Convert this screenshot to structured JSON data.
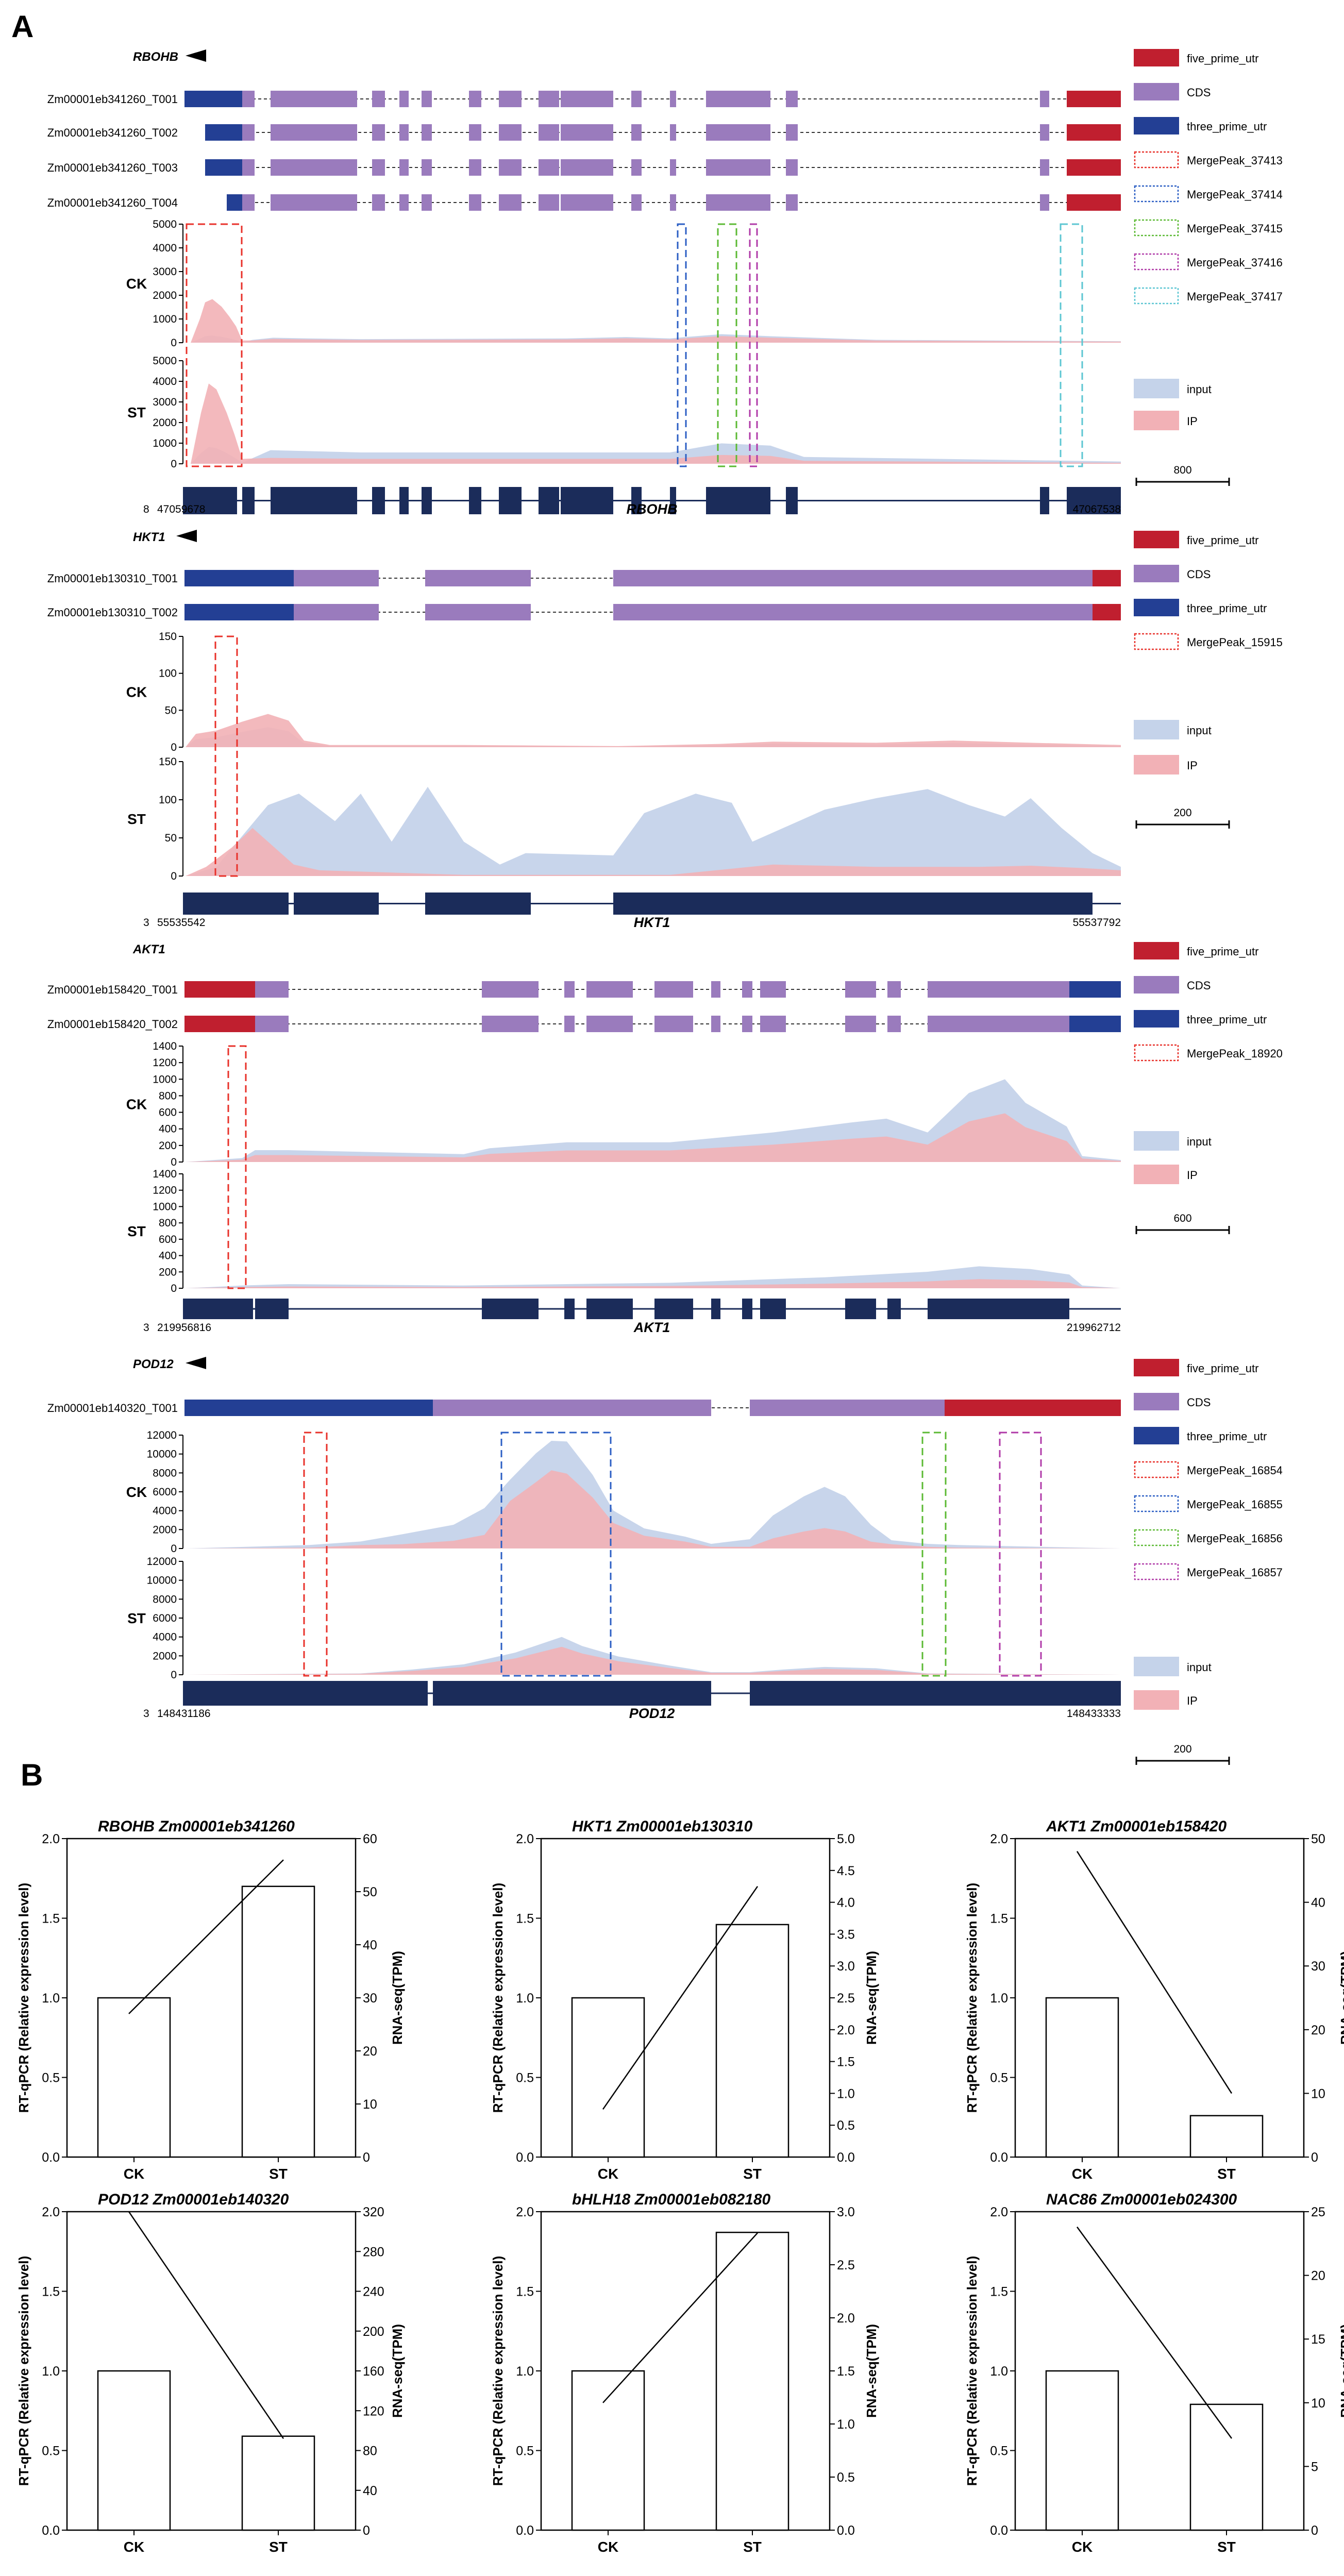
{
  "figure": {
    "panel_a_label": "A",
    "panel_b_label": "B"
  },
  "colors": {
    "five_prime_utr": "#c01f2f",
    "cds": "#9a7bbd",
    "three_prime_utr": "#233f94",
    "input": "#c5d3ea",
    "ip": "#f2b1b6",
    "gene_block": "#1b2c5a"
  },
  "legend_common": {
    "five_prime_utr": "five_prime_utr",
    "cds": "CDS",
    "three_prime_utr": "three_prime_utr",
    "input": "input",
    "ip": "IP"
  },
  "tracks": [
    {
      "id": "rbohb",
      "gene": "RBOHB",
      "strand": "minus",
      "chrom": "8",
      "start": "47059678",
      "end": "47067538",
      "scale_bar": "800",
      "transcripts": [
        "Zm00001eb341260_T001",
        "Zm00001eb341260_T002",
        "Zm00001eb341260_T003",
        "Zm00001eb341260_T004"
      ],
      "peaks": [
        {
          "name": "MergePeak_37413",
          "color": "#e8312a"
        },
        {
          "name": "MergePeak_37414",
          "color": "#2c5fc4"
        },
        {
          "name": "MergePeak_37415",
          "color": "#5cba34"
        },
        {
          "name": "MergePeak_37416",
          "color": "#b03aa8"
        },
        {
          "name": "MergePeak_37417",
          "color": "#5cc6d2"
        }
      ],
      "coverage": {
        "ck": {
          "label": "CK",
          "yticks": [
            "5000",
            "4000",
            "3000",
            "2000",
            "1000",
            "0"
          ],
          "ymax": 5000
        },
        "st": {
          "label": "ST",
          "yticks": [
            "5000",
            "4000",
            "3000",
            "2000",
            "1000",
            "0"
          ],
          "ymax": 5000
        }
      }
    },
    {
      "id": "hkt1",
      "gene": "HKT1",
      "strand": "minus",
      "chrom": "3",
      "start": "55535542",
      "end": "55537792",
      "scale_bar": "200",
      "transcripts": [
        "Zm00001eb130310_T001",
        "Zm00001eb130310_T002"
      ],
      "peaks": [
        {
          "name": "MergePeak_15915",
          "color": "#e8312a"
        }
      ],
      "coverage": {
        "ck": {
          "label": "CK",
          "yticks": [
            "150",
            "100",
            "50",
            "0"
          ],
          "ymax": 150
        },
        "st": {
          "label": "ST",
          "yticks": [
            "150",
            "100",
            "50",
            "0"
          ],
          "ymax": 150
        }
      }
    },
    {
      "id": "akt1",
      "gene": "AKT1",
      "strand": "plus",
      "chrom": "3",
      "start": "219956816",
      "end": "219962712",
      "scale_bar": "600",
      "transcripts": [
        "Zm00001eb158420_T001",
        "Zm00001eb158420_T002"
      ],
      "peaks": [
        {
          "name": "MergePeak_18920",
          "color": "#e8312a"
        }
      ],
      "coverage": {
        "ck": {
          "label": "CK",
          "yticks": [
            "1400",
            "1200",
            "1000",
            "800",
            "600",
            "400",
            "200",
            "0"
          ],
          "ymax": 1400
        },
        "st": {
          "label": "ST",
          "yticks": [
            "1400",
            "1200",
            "1000",
            "800",
            "600",
            "400",
            "200",
            "0"
          ],
          "ymax": 1400
        }
      }
    },
    {
      "id": "pod12",
      "gene": "POD12",
      "strand": "minus",
      "chrom": "3",
      "start": "148431186",
      "end": "148433333",
      "scale_bar": "200",
      "transcripts": [
        "Zm00001eb140320_T001"
      ],
      "peaks": [
        {
          "name": "MergePeak_16854",
          "color": "#e8312a"
        },
        {
          "name": "MergePeak_16855",
          "color": "#2c5fc4"
        },
        {
          "name": "MergePeak_16856",
          "color": "#5cba34"
        },
        {
          "name": "MergePeak_16857",
          "color": "#b03aa8"
        }
      ],
      "coverage": {
        "ck": {
          "label": "CK",
          "yticks": [
            "12000",
            "10000",
            "8000",
            "6000",
            "4000",
            "2000",
            "0"
          ],
          "ymax": 12000
        },
        "st": {
          "label": "ST",
          "yticks": [
            "12000",
            "10000",
            "8000",
            "6000",
            "4000",
            "2000",
            "0"
          ],
          "ymax": 12000
        }
      }
    }
  ],
  "chart_data": [
    {
      "type": "bar",
      "title": "RBOHB  Zm00001eb341260",
      "categories": [
        "CK",
        "ST"
      ],
      "values": [
        1.0,
        1.7
      ],
      "ylabel": "RT-qPCR (Relative expression level)",
      "ylim": [
        0,
        2.0
      ],
      "yticks": [
        "0.0",
        "0.5",
        "1.0",
        "1.5",
        "2.0"
      ],
      "y2label": "RNA-seq(TPM)",
      "y2lim": [
        0,
        60
      ],
      "y2ticks": [
        "0",
        "10",
        "20",
        "30",
        "40",
        "50",
        "60"
      ],
      "line_values": [
        27,
        56
      ]
    },
    {
      "type": "bar",
      "title": "HKT1  Zm00001eb130310",
      "categories": [
        "CK",
        "ST"
      ],
      "values": [
        1.0,
        1.46
      ],
      "ylabel": "RT-qPCR (Relative expression level)",
      "ylim": [
        0,
        2.0
      ],
      "yticks": [
        "0.0",
        "0.5",
        "1.0",
        "1.5",
        "2.0"
      ],
      "y2label": "RNA-seq(TPM)",
      "y2lim": [
        0,
        5.0
      ],
      "y2ticks": [
        "0.0",
        "0.5",
        "1.0",
        "1.5",
        "2.0",
        "2.5",
        "3.0",
        "3.5",
        "4.0",
        "4.5",
        "5.0"
      ],
      "line_values": [
        0.75,
        4.25
      ]
    },
    {
      "type": "bar",
      "title": "AKT1  Zm00001eb158420",
      "categories": [
        "CK",
        "ST"
      ],
      "values": [
        1.0,
        0.26
      ],
      "ylabel": "RT-qPCR (Relative expression level)",
      "ylim": [
        0,
        2.0
      ],
      "yticks": [
        "0.0",
        "0.5",
        "1.0",
        "1.5",
        "2.0"
      ],
      "y2label": "RNA-seq(TPM)",
      "y2lim": [
        0,
        50
      ],
      "y2ticks": [
        "0",
        "10",
        "20",
        "30",
        "40",
        "50"
      ],
      "line_values": [
        48,
        10
      ]
    },
    {
      "type": "bar",
      "title": "POD12  Zm00001eb140320",
      "categories": [
        "CK",
        "ST"
      ],
      "values": [
        1.0,
        0.59
      ],
      "ylabel": "RT-qPCR (Relative expression level)",
      "ylim": [
        0,
        2.0
      ],
      "yticks": [
        "0.0",
        "0.5",
        "1.0",
        "1.5",
        "2.0"
      ],
      "y2label": "RNA-seq(TPM)",
      "y2lim": [
        0,
        320
      ],
      "y2ticks": [
        "0",
        "40",
        "80",
        "120",
        "160",
        "200",
        "240",
        "280",
        "320"
      ],
      "line_values": [
        320,
        92
      ]
    },
    {
      "type": "bar",
      "title": "bHLH18  Zm00001eb082180",
      "categories": [
        "CK",
        "ST"
      ],
      "values": [
        1.0,
        1.87
      ],
      "ylabel": "RT-qPCR (Relative expression level)",
      "ylim": [
        0,
        2.0
      ],
      "yticks": [
        "0.0",
        "0.5",
        "1.0",
        "1.5",
        "2.0"
      ],
      "y2label": "RNA-seq(TPM)",
      "y2lim": [
        0,
        3.0
      ],
      "y2ticks": [
        "0.0",
        "0.5",
        "1.0",
        "1.5",
        "2.0",
        "2.5",
        "3.0"
      ],
      "line_values": [
        1.2,
        2.8
      ]
    },
    {
      "type": "bar",
      "title": "NAC86  Zm00001eb024300",
      "categories": [
        "CK",
        "ST"
      ],
      "values": [
        1.0,
        0.79
      ],
      "ylabel": "RT-qPCR (Relative expression level)",
      "ylim": [
        0,
        2.0
      ],
      "yticks": [
        "0.0",
        "0.5",
        "1.0",
        "1.5",
        "2.0"
      ],
      "y2label": "RNA-seq(TPM)",
      "y2lim": [
        0,
        25
      ],
      "y2ticks": [
        "0",
        "5",
        "10",
        "15",
        "20",
        "25"
      ],
      "line_values": [
        23.8,
        7.2
      ]
    }
  ]
}
